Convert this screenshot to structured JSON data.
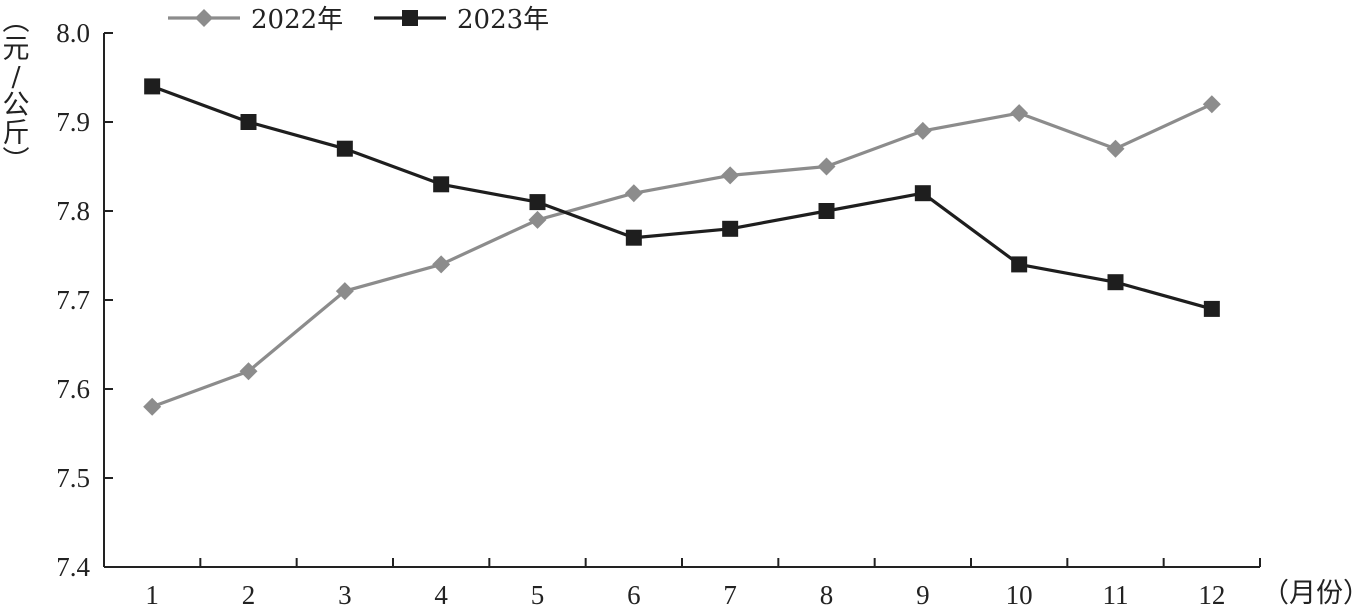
{
  "chart_data": {
    "type": "line",
    "categories": [
      "1",
      "2",
      "3",
      "4",
      "5",
      "6",
      "7",
      "8",
      "9",
      "10",
      "11",
      "12"
    ],
    "series": [
      {
        "name": "2022年",
        "color": "#8c8c8c",
        "marker": "diamond",
        "values": [
          7.58,
          7.62,
          7.71,
          7.74,
          7.79,
          7.82,
          7.84,
          7.85,
          7.89,
          7.91,
          7.87,
          7.92
        ]
      },
      {
        "name": "2023年",
        "color": "#1e1e1e",
        "marker": "square",
        "values": [
          7.94,
          7.9,
          7.87,
          7.83,
          7.81,
          7.77,
          7.78,
          7.8,
          7.82,
          7.74,
          7.72,
          7.69
        ]
      }
    ],
    "ylim": [
      7.4,
      8.0
    ],
    "yticks": [
      "7.4",
      "7.5",
      "7.6",
      "7.7",
      "7.8",
      "7.9",
      "8.0"
    ],
    "ylabel": "（元/公斤）",
    "xlabel": "（月份）",
    "grid": false,
    "legend_position": "top-left"
  }
}
